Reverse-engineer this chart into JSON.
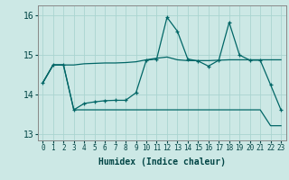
{
  "background_color": "#cce8e5",
  "grid_color": "#aad4d0",
  "line_color": "#006666",
  "xlabel": "Humidex (Indice chaleur)",
  "xlim": [
    -0.5,
    23.5
  ],
  "ylim": [
    12.85,
    16.25
  ],
  "yticks": [
    13,
    14,
    15,
    16
  ],
  "xticks": [
    0,
    1,
    2,
    3,
    4,
    5,
    6,
    7,
    8,
    9,
    10,
    11,
    12,
    13,
    14,
    15,
    16,
    17,
    18,
    19,
    20,
    21,
    22,
    23
  ],
  "line_top": [
    14.3,
    14.75,
    14.75,
    14.75,
    14.78,
    14.79,
    14.8,
    14.8,
    14.81,
    14.83,
    14.88,
    14.92,
    14.95,
    14.88,
    14.86,
    14.86,
    14.86,
    14.87,
    14.88,
    14.88,
    14.88,
    14.88,
    14.88,
    14.88
  ],
  "line_mid": [
    14.3,
    14.75,
    14.75,
    13.62,
    13.78,
    13.82,
    13.85,
    13.86,
    13.86,
    14.05,
    14.87,
    14.9,
    15.95,
    15.6,
    14.9,
    14.85,
    14.72,
    14.87,
    15.82,
    15.0,
    14.87,
    14.87,
    14.25,
    13.62
  ],
  "line_bot": [
    14.3,
    14.75,
    14.75,
    13.62,
    13.62,
    13.62,
    13.62,
    13.62,
    13.62,
    13.62,
    13.62,
    13.62,
    13.62,
    13.62,
    13.62,
    13.62,
    13.62,
    13.62,
    13.62,
    13.62,
    13.62,
    13.62,
    13.22,
    13.22
  ]
}
